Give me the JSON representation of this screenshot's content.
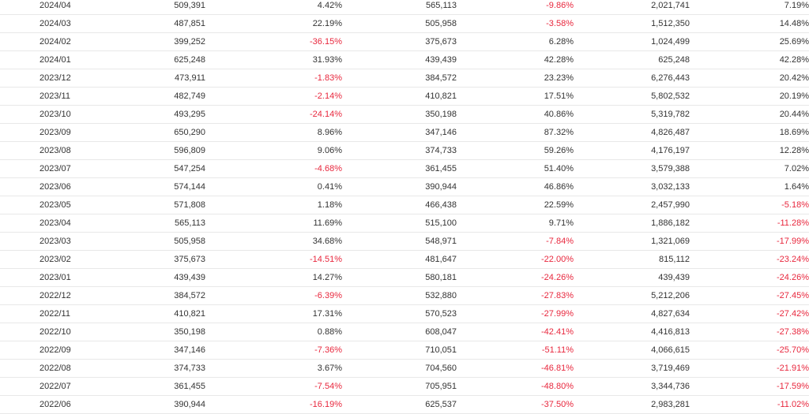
{
  "rows": [
    [
      "2024/04",
      "509,391",
      "4.42%",
      "565,113",
      "-9.86%",
      "2,021,741",
      "7.19%"
    ],
    [
      "2024/03",
      "487,851",
      "22.19%",
      "505,958",
      "-3.58%",
      "1,512,350",
      "14.48%"
    ],
    [
      "2024/02",
      "399,252",
      "-36.15%",
      "375,673",
      "6.28%",
      "1,024,499",
      "25.69%"
    ],
    [
      "2024/01",
      "625,248",
      "31.93%",
      "439,439",
      "42.28%",
      "625,248",
      "42.28%"
    ],
    [
      "2023/12",
      "473,911",
      "-1.83%",
      "384,572",
      "23.23%",
      "6,276,443",
      "20.42%"
    ],
    [
      "2023/11",
      "482,749",
      "-2.14%",
      "410,821",
      "17.51%",
      "5,802,532",
      "20.19%"
    ],
    [
      "2023/10",
      "493,295",
      "-24.14%",
      "350,198",
      "40.86%",
      "5,319,782",
      "20.44%"
    ],
    [
      "2023/09",
      "650,290",
      "8.96%",
      "347,146",
      "87.32%",
      "4,826,487",
      "18.69%"
    ],
    [
      "2023/08",
      "596,809",
      "9.06%",
      "374,733",
      "59.26%",
      "4,176,197",
      "12.28%"
    ],
    [
      "2023/07",
      "547,254",
      "-4.68%",
      "361,455",
      "51.40%",
      "3,579,388",
      "7.02%"
    ],
    [
      "2023/06",
      "574,144",
      "0.41%",
      "390,944",
      "46.86%",
      "3,032,133",
      "1.64%"
    ],
    [
      "2023/05",
      "571,808",
      "1.18%",
      "466,438",
      "22.59%",
      "2,457,990",
      "-5.18%"
    ],
    [
      "2023/04",
      "565,113",
      "11.69%",
      "515,100",
      "9.71%",
      "1,886,182",
      "-11.28%"
    ],
    [
      "2023/03",
      "505,958",
      "34.68%",
      "548,971",
      "-7.84%",
      "1,321,069",
      "-17.99%"
    ],
    [
      "2023/02",
      "375,673",
      "-14.51%",
      "481,647",
      "-22.00%",
      "815,112",
      "-23.24%"
    ],
    [
      "2023/01",
      "439,439",
      "14.27%",
      "580,181",
      "-24.26%",
      "439,439",
      "-24.26%"
    ],
    [
      "2022/12",
      "384,572",
      "-6.39%",
      "532,880",
      "-27.83%",
      "5,212,206",
      "-27.45%"
    ],
    [
      "2022/11",
      "410,821",
      "17.31%",
      "570,523",
      "-27.99%",
      "4,827,634",
      "-27.42%"
    ],
    [
      "2022/10",
      "350,198",
      "0.88%",
      "608,047",
      "-42.41%",
      "4,416,813",
      "-27.38%"
    ],
    [
      "2022/09",
      "347,146",
      "-7.36%",
      "710,051",
      "-51.11%",
      "4,066,615",
      "-25.70%"
    ],
    [
      "2022/08",
      "374,733",
      "3.67%",
      "704,560",
      "-46.81%",
      "3,719,469",
      "-21.91%"
    ],
    [
      "2022/07",
      "361,455",
      "-7.54%",
      "705,951",
      "-48.80%",
      "3,344,736",
      "-17.59%"
    ],
    [
      "2022/06",
      "390,944",
      "-16.19%",
      "625,537",
      "-37.50%",
      "2,983,281",
      "-11.02%"
    ]
  ],
  "colors": {
    "text": "#333333",
    "negative": "#e8273d",
    "row_border": "#e8e8e8"
  }
}
